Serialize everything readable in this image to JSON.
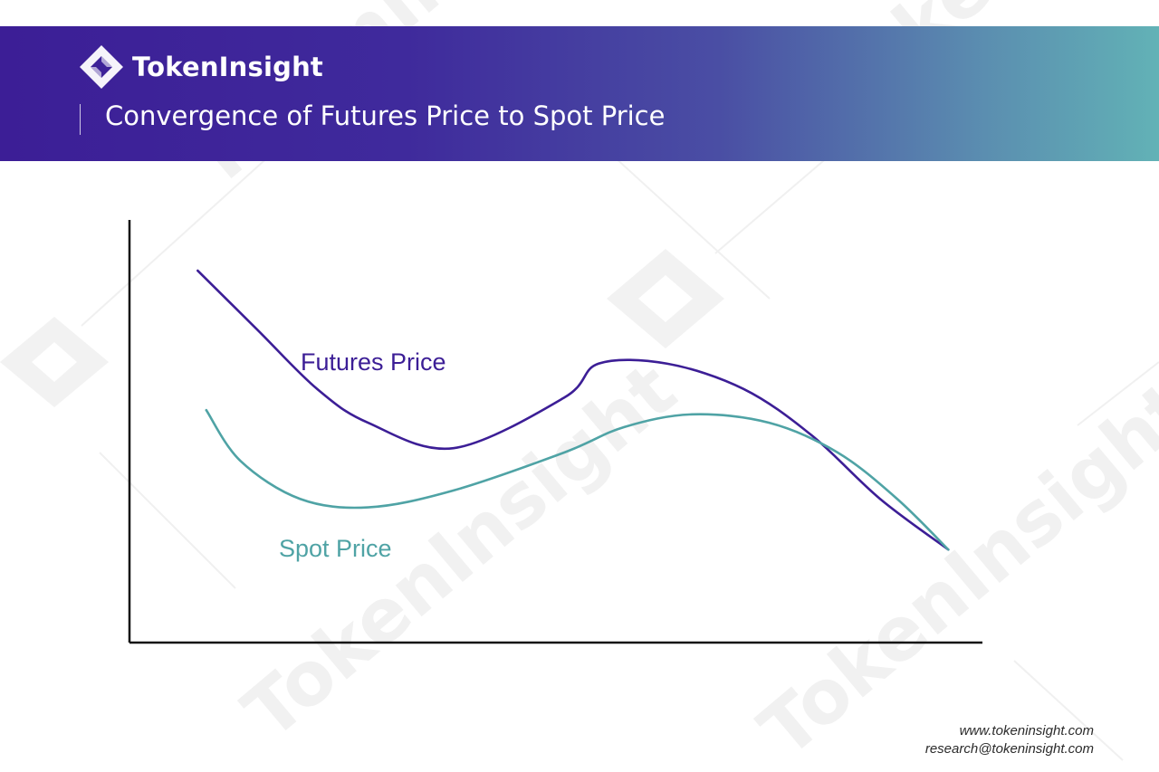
{
  "brand": {
    "name": "TokenInsight",
    "logo_icon": "tokeninsight-logo-icon"
  },
  "header": {
    "title": "Convergence of Futures Price to Spot Price"
  },
  "watermark": {
    "text": "TokenInsight"
  },
  "colors": {
    "header_start": "#3c1e96",
    "header_end": "#62b2b6",
    "futures": "#3c1e96",
    "spot": "#4fa3a5",
    "axis": "#111111"
  },
  "chart_data": {
    "type": "line",
    "title": "",
    "xlabel": "",
    "ylabel": "",
    "xlim": [
      0,
      100
    ],
    "ylim": [
      0,
      100
    ],
    "grid": false,
    "legend": "none",
    "series": [
      {
        "name": "Futures Price",
        "color": "#3c1e96",
        "x": [
          8,
          15,
          22,
          28,
          38,
          51,
          55,
          63,
          72,
          80,
          88,
          96
        ],
        "y": [
          88,
          74,
          60,
          52,
          46,
          58,
          66,
          66,
          60,
          49,
          34,
          22
        ]
      },
      {
        "name": "Spot Price",
        "color": "#4fa3a5",
        "x": [
          9,
          13,
          20,
          28,
          38,
          51,
          58,
          66,
          75,
          83,
          90,
          96
        ],
        "y": [
          55,
          43,
          34,
          32,
          36,
          45,
          51,
          54,
          52,
          45,
          34,
          22
        ]
      }
    ]
  },
  "footer": {
    "website": "www.tokeninsight.com",
    "email": "research@tokeninsight.com"
  }
}
